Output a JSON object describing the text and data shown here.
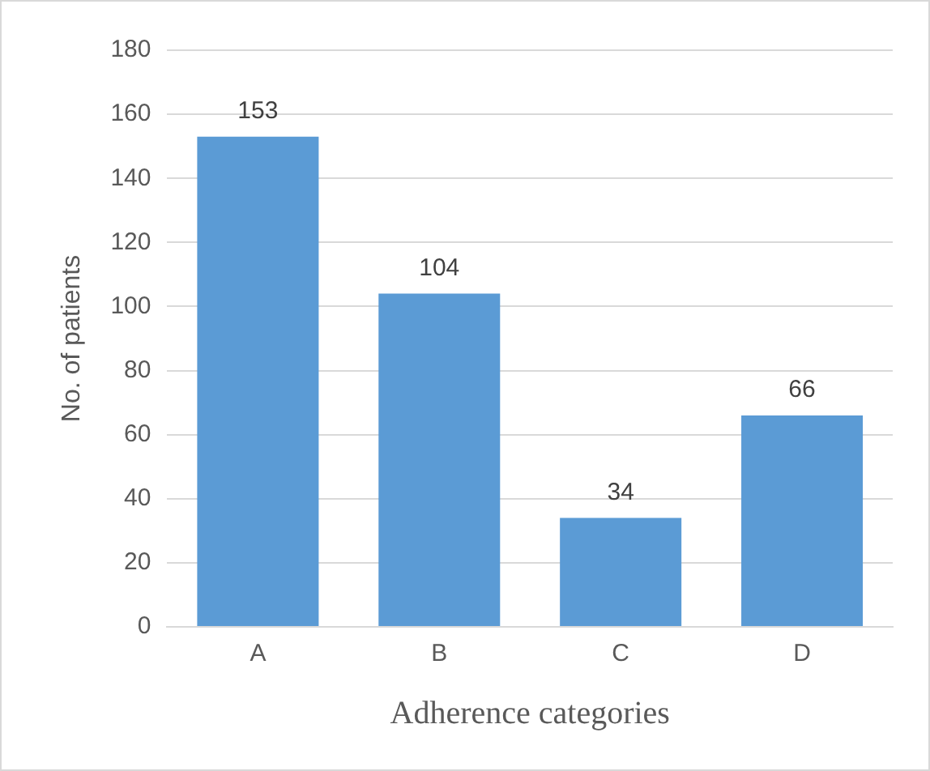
{
  "chart_data": {
    "type": "bar",
    "xlabel": "Adherence categories",
    "ylabel": "No. of patients",
    "categories": [
      "A",
      "B",
      "C",
      "D"
    ],
    "values": [
      153,
      104,
      34,
      66
    ],
    "color": "#5b9bd5",
    "ylim": [
      0,
      180
    ],
    "yticks": [
      0,
      20,
      40,
      60,
      80,
      100,
      120,
      140,
      160,
      180
    ],
    "grid": "y",
    "data_labels": true,
    "legend": false
  }
}
